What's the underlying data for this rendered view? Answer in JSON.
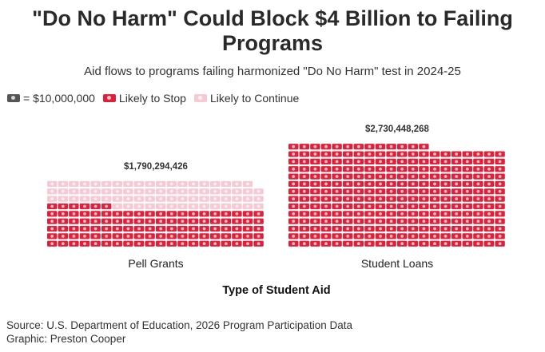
{
  "title": "\"Do No Harm\" Could Block $4 Billion to Failing Programs",
  "subtitle": "Aid flows to programs failing harmonized \"Do No Harm\" test in 2024-25",
  "legend": {
    "unit_label": "= $10,000,000",
    "stop_label": "Likely to Stop",
    "continue_label": "Likely to Continue"
  },
  "colors": {
    "stop": "#e0203a",
    "continue": "#f6c9d3",
    "unit": "#555555"
  },
  "chart_data": {
    "type": "waffle",
    "unit_value": 10000000,
    "xlabel": "Type of Student Aid",
    "categories": [
      "Pell Grants",
      "Student Loans"
    ],
    "totals_labels": [
      "$1,790,294,426",
      "$2,730,448,268"
    ],
    "totals": [
      1790294426,
      2730448268
    ],
    "series": [
      {
        "name": "Likely to Stop",
        "values": [
          106,
          273
        ]
      },
      {
        "name": "Likely to Continue",
        "values": [
          73,
          0
        ]
      }
    ]
  },
  "footer": {
    "source": "Source: U.S. Department of Education, 2026 Program Participation Data",
    "graphic": "Graphic: Preston Cooper"
  }
}
